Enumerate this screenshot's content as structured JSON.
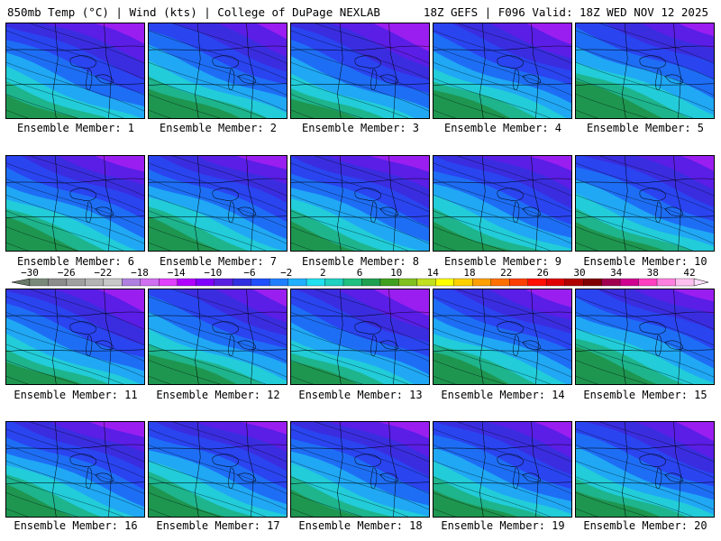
{
  "header": {
    "left": "850mb Temp (°C) | Wind (kts) | College of DuPage NEXLAB",
    "right": "18Z GEFS | F096 Valid: 18Z WED NOV 12 2025"
  },
  "members": [
    {
      "label": "Ensemble Member: 1",
      "cold": 0.75
    },
    {
      "label": "Ensemble Member: 2",
      "cold": 0.55
    },
    {
      "label": "Ensemble Member: 3",
      "cold": 0.85
    },
    {
      "label": "Ensemble Member: 4",
      "cold": 0.65
    },
    {
      "label": "Ensemble Member: 5",
      "cold": 0.45
    },
    {
      "label": "Ensemble Member: 6",
      "cold": 0.6
    },
    {
      "label": "Ensemble Member: 7",
      "cold": 0.6
    },
    {
      "label": "Ensemble Member: 8",
      "cold": 0.7
    },
    {
      "label": "Ensemble Member: 9",
      "cold": 0.65
    },
    {
      "label": "Ensemble Member: 10",
      "cold": 0.6
    },
    {
      "label": "Ensemble Member: 11",
      "cold": 0.75
    },
    {
      "label": "Ensemble Member: 12",
      "cold": 0.55
    },
    {
      "label": "Ensemble Member: 13",
      "cold": 0.8
    },
    {
      "label": "Ensemble Member: 14",
      "cold": 0.6
    },
    {
      "label": "Ensemble Member: 15",
      "cold": 0.5
    },
    {
      "label": "Ensemble Member: 16",
      "cold": 0.65
    },
    {
      "label": "Ensemble Member: 17",
      "cold": 0.6
    },
    {
      "label": "Ensemble Member: 18",
      "cold": 0.7
    },
    {
      "label": "Ensemble Member: 19",
      "cold": 0.65
    },
    {
      "label": "Ensemble Member: 20",
      "cold": 0.65
    }
  ],
  "colorbar": {
    "labels": [
      "-30",
      "-26",
      "-22",
      "-18",
      "-14",
      "-10",
      "-6",
      "-2",
      "2",
      "6",
      "10",
      "14",
      "18",
      "22",
      "26",
      "30",
      "34",
      "38",
      "42"
    ],
    "colors": [
      "#7a8a7a",
      "#8c8c8c",
      "#a0a0a0",
      "#b4b4b4",
      "#c8c8c8",
      "#b080e0",
      "#d070f0",
      "#e040ff",
      "#b000ff",
      "#8000ff",
      "#5a20e0",
      "#3030e0",
      "#2050ff",
      "#2080ff",
      "#20b0ff",
      "#20e0f0",
      "#20d0c0",
      "#20c080",
      "#20a050",
      "#40a020",
      "#80c020",
      "#c0e020",
      "#ffff00",
      "#ffd000",
      "#ffa000",
      "#ff7000",
      "#ff4000",
      "#ff1000",
      "#e00000",
      "#b00000",
      "#800000",
      "#a00050",
      "#d00090",
      "#ff40c0",
      "#ff80e0",
      "#ffc0f0"
    ],
    "thin_left": "#6a7a6a",
    "thin_right": "#ffe0ff"
  }
}
